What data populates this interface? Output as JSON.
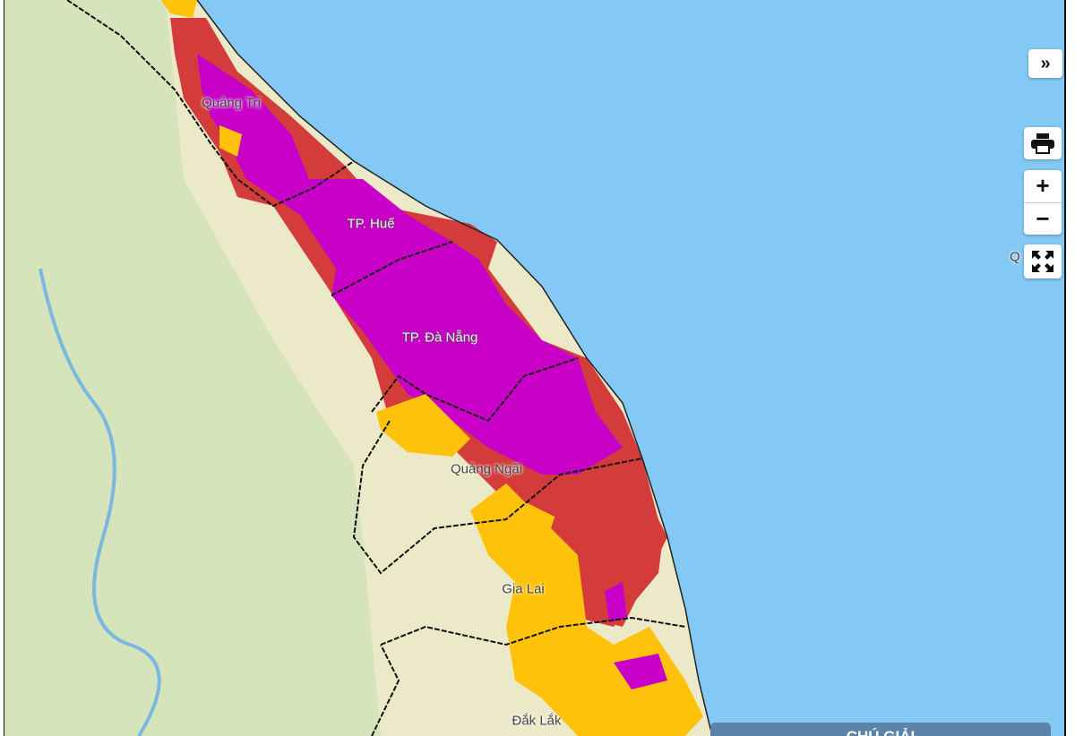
{
  "map": {
    "labels": {
      "quang_tri": "Quảng Trị",
      "hue": "TP. Huế",
      "da_nang": "TP. Đà Nẵng",
      "quang_ngai": "Quảng Ngãi",
      "gia_lai": "Gia Lai",
      "dak_lak": "Đắk Lắk",
      "offscreen": "Q"
    },
    "colors": {
      "sea": "#84c8f5",
      "land": "#cfe0b4",
      "level_magenta": "#c800c8",
      "level_red": "#d43c3c",
      "level_yellow": "#ffc20a"
    }
  },
  "controls": {
    "collapse_label": "»",
    "zoom_in_label": "+",
    "zoom_out_label": "−"
  },
  "legend": {
    "title": "CHÚ GIẢI"
  }
}
